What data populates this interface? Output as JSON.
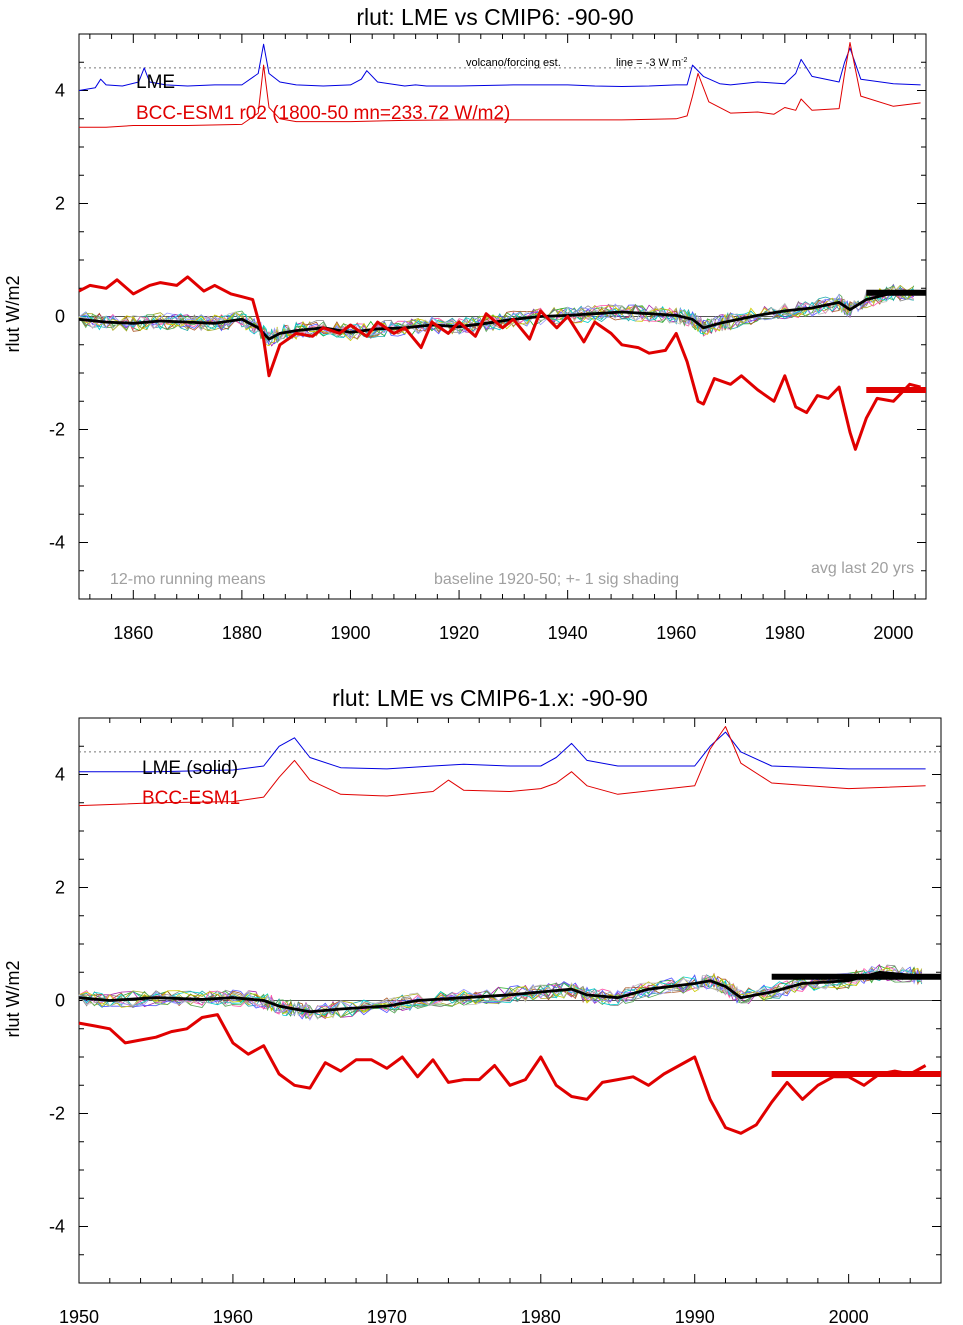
{
  "chart_data": [
    {
      "type": "line",
      "title": "rlut: LME vs CMIP6: -90-90",
      "ylabel": "rlut W/m2",
      "xlim": [
        1850,
        2006
      ],
      "ylim": [
        -5,
        5
      ],
      "xticks": [
        1860,
        1880,
        1900,
        1920,
        1940,
        1960,
        1980,
        2000
      ],
      "yticks": [
        -4,
        -2,
        0,
        2,
        4
      ],
      "grid": false,
      "legend": [
        {
          "label": "LME",
          "color": "#000000"
        },
        {
          "label": "BCC-ESM1  r02 (1800-50 mn=233.72 W/m2)",
          "color": "#e00000"
        }
      ],
      "annotations": {
        "forcing_note": "volcano/forcing est.",
        "line_note": "line = -3 W m",
        "line_note_sup": "-2",
        "running_mean_note": "12-mo running means",
        "baseline_note": "baseline 1920-50; +- 1 sig shading",
        "avg_note": "avg last 20 yrs"
      },
      "reference_lines": {
        "zero": 0,
        "dotted": 4.4
      },
      "series": [
        {
          "name": "LME",
          "color": "#000000",
          "role": "ensemble_mean",
          "x": [
            1850,
            1855,
            1860,
            1865,
            1870,
            1875,
            1880,
            1883,
            1885,
            1887,
            1890,
            1895,
            1900,
            1905,
            1910,
            1915,
            1920,
            1925,
            1930,
            1935,
            1940,
            1945,
            1950,
            1955,
            1960,
            1963,
            1965,
            1968,
            1970,
            1975,
            1980,
            1985,
            1990,
            1992,
            1995,
            2000,
            2005
          ],
          "y": [
            -0.05,
            -0.1,
            -0.12,
            -0.08,
            -0.1,
            -0.12,
            -0.05,
            -0.2,
            -0.4,
            -0.3,
            -0.25,
            -0.2,
            -0.28,
            -0.22,
            -0.2,
            -0.15,
            -0.18,
            -0.12,
            -0.05,
            0.0,
            0.02,
            0.05,
            0.08,
            0.05,
            0.02,
            -0.05,
            -0.2,
            -0.12,
            -0.08,
            0.02,
            0.1,
            0.15,
            0.25,
            0.12,
            0.3,
            0.42,
            0.4
          ]
        },
        {
          "name": "BCC-ESM1",
          "color": "#e00000",
          "role": "model",
          "x": [
            1850,
            1852,
            1855,
            1857,
            1860,
            1863,
            1865,
            1868,
            1870,
            1873,
            1875,
            1878,
            1880,
            1882,
            1884,
            1885,
            1887,
            1890,
            1893,
            1895,
            1898,
            1900,
            1903,
            1905,
            1908,
            1910,
            1913,
            1915,
            1918,
            1920,
            1923,
            1925,
            1928,
            1930,
            1933,
            1935,
            1938,
            1940,
            1943,
            1945,
            1948,
            1950,
            1953,
            1955,
            1958,
            1960,
            1962,
            1964,
            1965,
            1967,
            1970,
            1972,
            1975,
            1978,
            1980,
            1982,
            1984,
            1986,
            1988,
            1990,
            1992,
            1993,
            1995,
            1997,
            2000,
            2003,
            2005
          ],
          "y": [
            0.45,
            0.55,
            0.5,
            0.65,
            0.4,
            0.55,
            0.6,
            0.55,
            0.7,
            0.45,
            0.55,
            0.4,
            0.35,
            0.3,
            -0.4,
            -1.05,
            -0.5,
            -0.3,
            -0.35,
            -0.2,
            -0.3,
            -0.15,
            -0.35,
            -0.1,
            -0.3,
            -0.2,
            -0.55,
            -0.1,
            -0.3,
            -0.1,
            -0.35,
            0.05,
            -0.2,
            -0.05,
            -0.4,
            0.1,
            -0.2,
            0.0,
            -0.45,
            -0.1,
            -0.3,
            -0.5,
            -0.55,
            -0.65,
            -0.6,
            -0.3,
            -0.8,
            -1.5,
            -1.55,
            -1.1,
            -1.2,
            -1.05,
            -1.3,
            -1.5,
            -1.05,
            -1.6,
            -1.7,
            -1.4,
            -1.45,
            -1.25,
            -2.05,
            -2.35,
            -1.8,
            -1.45,
            -1.5,
            -1.2,
            -1.25
          ]
        },
        {
          "name": "LME volcano/forcing est.",
          "color": "#0000e0",
          "role": "forcing",
          "x": [
            1850,
            1853,
            1854,
            1855,
            1858,
            1861,
            1862,
            1863,
            1866,
            1870,
            1875,
            1880,
            1883,
            1884,
            1885,
            1887,
            1890,
            1895,
            1900,
            1902,
            1903,
            1905,
            1910,
            1912,
            1914,
            1920,
            1930,
            1940,
            1945,
            1950,
            1955,
            1960,
            1962,
            1963,
            1965,
            1968,
            1970,
            1975,
            1980,
            1982,
            1983,
            1985,
            1990,
            1991,
            1992,
            1994,
            2000,
            2005
          ],
          "y": [
            4.0,
            4.05,
            4.2,
            4.1,
            4.08,
            4.15,
            4.4,
            4.15,
            4.1,
            4.08,
            4.1,
            4.1,
            4.3,
            4.82,
            4.3,
            4.15,
            4.1,
            4.08,
            4.1,
            4.2,
            4.35,
            4.15,
            4.08,
            4.1,
            4.08,
            4.08,
            4.1,
            4.1,
            4.08,
            4.07,
            4.08,
            4.1,
            4.1,
            4.45,
            4.25,
            4.12,
            4.1,
            4.15,
            4.12,
            4.3,
            4.55,
            4.25,
            4.15,
            4.5,
            4.75,
            4.2,
            4.12,
            4.1
          ]
        },
        {
          "name": "BCC-ESM1 volcano/forcing est.",
          "color": "#e00000",
          "role": "forcing",
          "x": [
            1850,
            1855,
            1860,
            1870,
            1880,
            1883,
            1884,
            1885,
            1887,
            1890,
            1900,
            1910,
            1920,
            1930,
            1940,
            1950,
            1960,
            1962,
            1963,
            1964,
            1966,
            1970,
            1975,
            1978,
            1980,
            1982,
            1983,
            1985,
            1990,
            1991,
            1992,
            1994,
            2000,
            2005
          ],
          "y": [
            3.35,
            3.35,
            3.38,
            3.38,
            3.4,
            3.6,
            4.45,
            3.7,
            3.5,
            3.45,
            3.45,
            3.47,
            3.48,
            3.48,
            3.48,
            3.48,
            3.5,
            3.55,
            3.9,
            4.3,
            3.8,
            3.6,
            3.62,
            3.58,
            3.7,
            3.65,
            3.85,
            3.65,
            3.68,
            4.3,
            4.85,
            3.9,
            3.72,
            3.78
          ]
        }
      ],
      "avg_last_20": [
        {
          "color": "#000000",
          "x": [
            1995,
            2006
          ],
          "y": 0.42
        },
        {
          "color": "#e00000",
          "x": [
            1995,
            2006
          ],
          "y": -1.3
        }
      ]
    },
    {
      "type": "line",
      "title": "rlut: LME vs CMIP6-1.x: -90-90",
      "ylabel": "rlut W/m2",
      "xlim": [
        1950,
        2006
      ],
      "ylim": [
        -5,
        5
      ],
      "xticks": [
        1950,
        1960,
        1970,
        1980,
        1990,
        2000
      ],
      "yticks": [
        -4,
        -2,
        0,
        2,
        4
      ],
      "grid": false,
      "legend": [
        {
          "label": "LME (solid)",
          "color": "#000000"
        },
        {
          "label": "BCC-ESM1",
          "color": "#e00000"
        }
      ],
      "reference_lines": {
        "zero": 0,
        "dotted": 4.4
      },
      "series": [
        {
          "name": "LME",
          "color": "#000000",
          "role": "ensemble_mean",
          "x": [
            1950,
            1952,
            1955,
            1958,
            1960,
            1962,
            1963,
            1964,
            1965,
            1967,
            1970,
            1972,
            1975,
            1978,
            1980,
            1982,
            1983,
            1985,
            1987,
            1990,
            1991,
            1992,
            1993,
            1995,
            1997,
            2000,
            2002,
            2004,
            2005
          ],
          "y": [
            0.05,
            0.0,
            0.05,
            0.02,
            0.05,
            0.0,
            -0.1,
            -0.15,
            -0.2,
            -0.15,
            -0.1,
            0.0,
            0.05,
            0.1,
            0.15,
            0.2,
            0.1,
            0.05,
            0.2,
            0.3,
            0.35,
            0.25,
            0.05,
            0.15,
            0.3,
            0.35,
            0.5,
            0.45,
            0.42
          ]
        },
        {
          "name": "BCC-ESM1",
          "color": "#e00000",
          "role": "model",
          "x": [
            1950,
            1951,
            1952,
            1953,
            1954,
            1955,
            1956,
            1957,
            1958,
            1959,
            1960,
            1961,
            1962,
            1963,
            1964,
            1965,
            1966,
            1967,
            1968,
            1969,
            1970,
            1971,
            1972,
            1973,
            1974,
            1975,
            1976,
            1977,
            1978,
            1979,
            1980,
            1981,
            1982,
            1983,
            1984,
            1985,
            1986,
            1987,
            1988,
            1989,
            1990,
            1991,
            1992,
            1993,
            1994,
            1995,
            1996,
            1997,
            1998,
            1999,
            2000,
            2001,
            2002,
            2003,
            2004,
            2005
          ],
          "y": [
            -0.4,
            -0.45,
            -0.5,
            -0.75,
            -0.7,
            -0.65,
            -0.55,
            -0.5,
            -0.3,
            -0.25,
            -0.75,
            -0.95,
            -0.8,
            -1.3,
            -1.5,
            -1.55,
            -1.1,
            -1.25,
            -1.05,
            -1.05,
            -1.2,
            -1.0,
            -1.35,
            -1.05,
            -1.45,
            -1.4,
            -1.4,
            -1.15,
            -1.5,
            -1.4,
            -1.0,
            -1.5,
            -1.7,
            -1.75,
            -1.45,
            -1.4,
            -1.35,
            -1.5,
            -1.3,
            -1.15,
            -1.0,
            -1.75,
            -2.25,
            -2.35,
            -2.2,
            -1.8,
            -1.45,
            -1.75,
            -1.5,
            -1.35,
            -1.35,
            -1.5,
            -1.3,
            -1.25,
            -1.3,
            -1.15
          ]
        },
        {
          "name": "LME volcano/forcing est.",
          "color": "#0000e0",
          "role": "forcing",
          "x": [
            1950,
            1955,
            1960,
            1962,
            1963,
            1964,
            1965,
            1967,
            1970,
            1973,
            1975,
            1978,
            1980,
            1981,
            1982,
            1983,
            1985,
            1990,
            1991,
            1992,
            1993,
            1995,
            2000,
            2005
          ],
          "y": [
            4.05,
            4.05,
            4.08,
            4.15,
            4.5,
            4.65,
            4.3,
            4.12,
            4.1,
            4.15,
            4.18,
            4.15,
            4.15,
            4.3,
            4.55,
            4.25,
            4.15,
            4.15,
            4.5,
            4.75,
            4.4,
            4.15,
            4.1,
            4.1
          ]
        },
        {
          "name": "BCC-ESM1 volcano/forcing est.",
          "color": "#e00000",
          "role": "forcing",
          "x": [
            1950,
            1955,
            1960,
            1962,
            1963,
            1964,
            1965,
            1967,
            1970,
            1973,
            1974,
            1975,
            1978,
            1980,
            1981,
            1982,
            1983,
            1985,
            1990,
            1991,
            1992,
            1993,
            1995,
            2000,
            2005
          ],
          "y": [
            3.45,
            3.5,
            3.52,
            3.6,
            3.95,
            4.25,
            3.9,
            3.65,
            3.62,
            3.7,
            3.9,
            3.72,
            3.7,
            3.75,
            3.85,
            4.05,
            3.8,
            3.65,
            3.8,
            4.45,
            4.85,
            4.2,
            3.85,
            3.75,
            3.8
          ]
        }
      ],
      "avg_last_20": [
        {
          "color": "#000000",
          "x": [
            1995,
            2006
          ],
          "y": 0.42
        },
        {
          "color": "#e00000",
          "x": [
            1995,
            2006
          ],
          "y": -1.3
        }
      ]
    }
  ]
}
